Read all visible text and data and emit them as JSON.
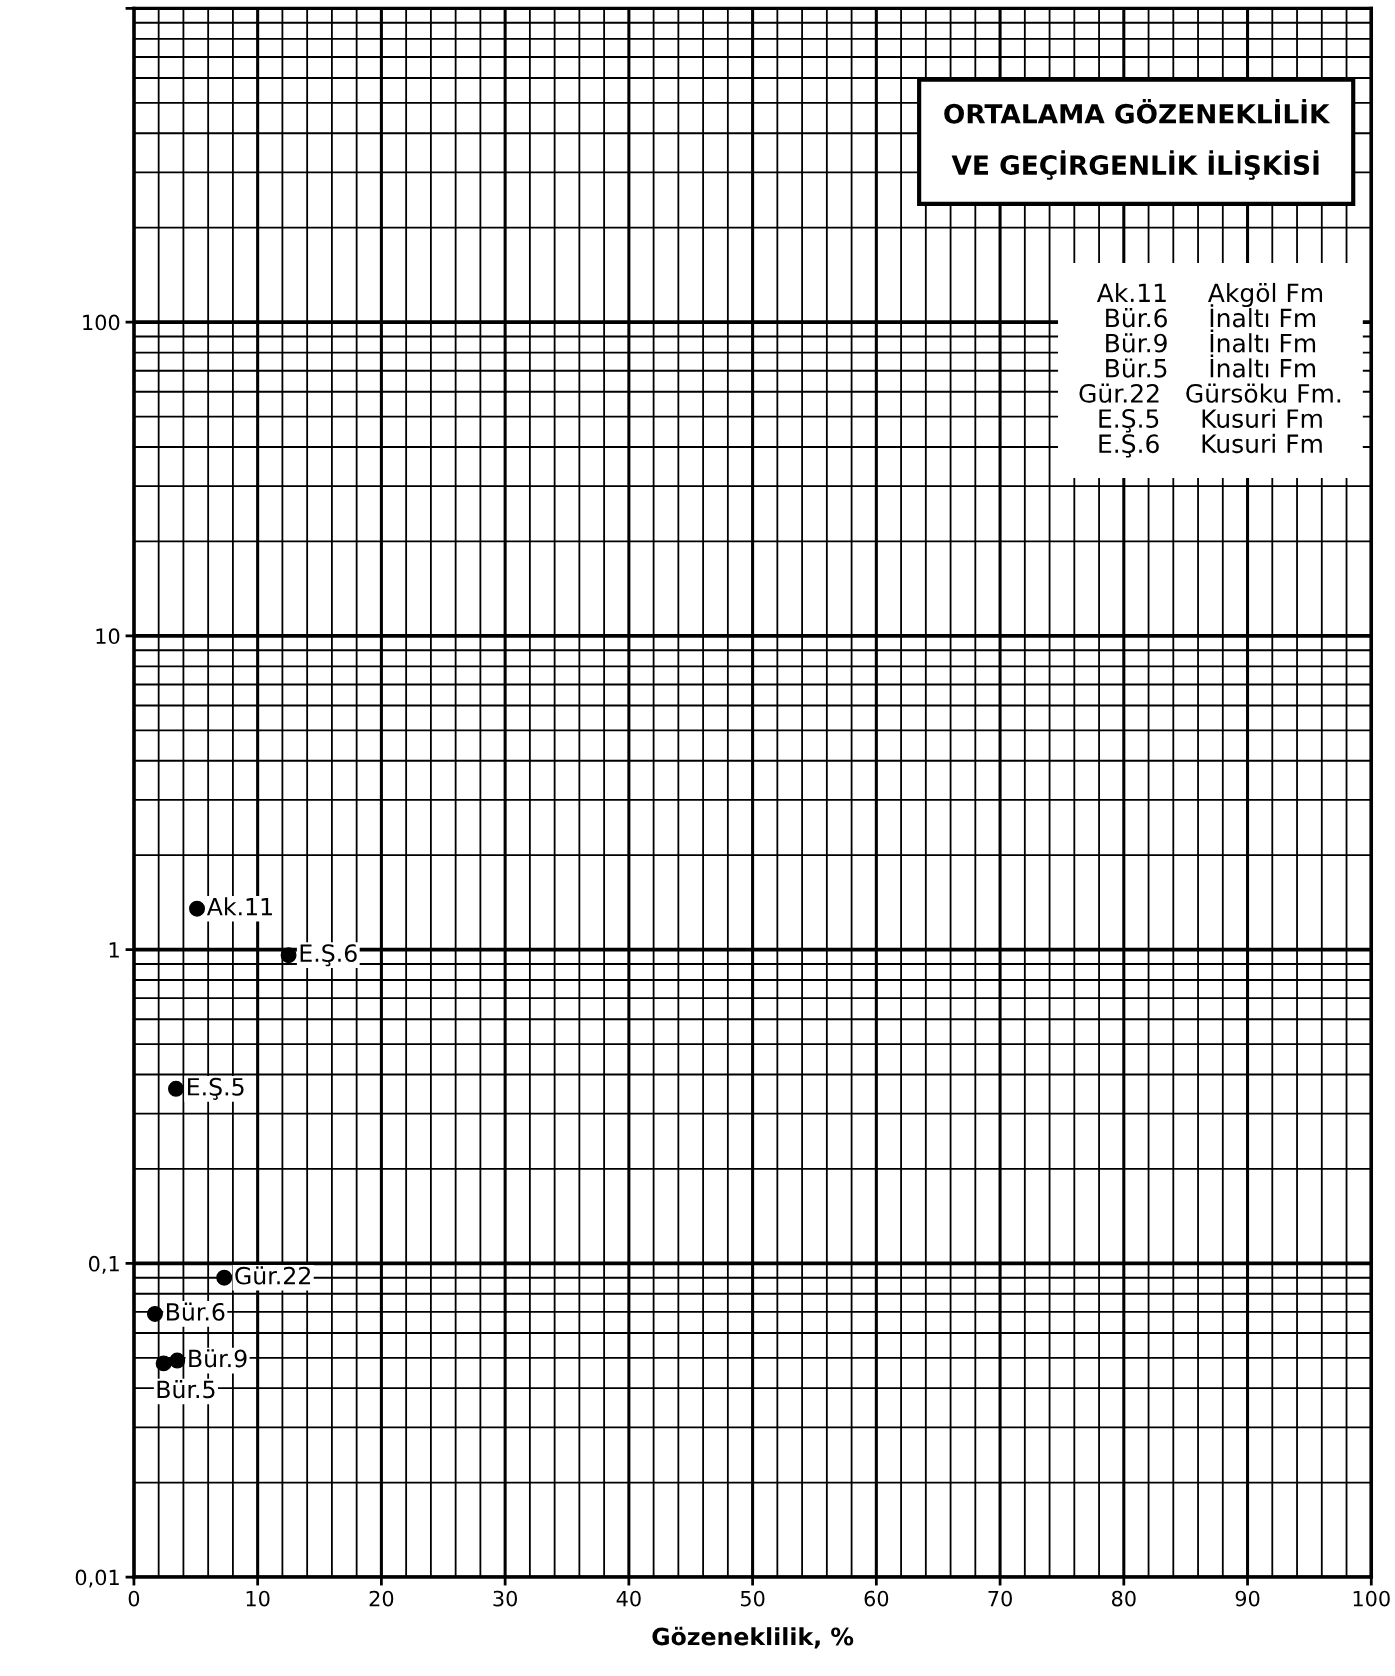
{
  "chart_data": {
    "type": "scatter",
    "title": "ORTALAMA GÖZENEKLİLİK\nVE GEÇİRGENLİK İLİŞKİSİ",
    "xlabel": "Gözeneklilik, %",
    "x": [
      5.1,
      12.5,
      3.4,
      7.3,
      1.7,
      3.5,
      2.4
    ],
    "series": [
      {
        "color": "#000000",
        "values": [
          1.35,
          0.96,
          0.36,
          0.09,
          0.069,
          0.049,
          0.048
        ]
      }
    ],
    "marker": "circle",
    "log": "y",
    "grid": true,
    "xlim": [
      0,
      100
    ],
    "xticks": [
      0,
      10,
      20,
      30,
      40,
      50,
      60,
      70,
      80,
      90,
      100
    ],
    "ylim": [
      0.01,
      1000
    ],
    "yticks": [
      {
        "value": 0.01,
        "label": "0,01"
      },
      {
        "value": 0.1,
        "label": "0,1"
      },
      1,
      10,
      100,
      {
        "value": 1000,
        "label": null
      }
    ],
    "annotations": [
      {
        "text": "Ak.11",
        "x": 5.1,
        "y": 1.35
      },
      {
        "text": "E.Ş.6",
        "x": 12.5,
        "y": 0.96
      },
      {
        "text": "E.Ş.5",
        "x": 3.4,
        "y": 0.36
      },
      {
        "text": "Gür.22",
        "x": 7.3,
        "y": 0.09
      },
      {
        "text": "Bür.6",
        "x": 1.7,
        "y": 0.069
      },
      {
        "text": "Bür.9",
        "x": 3.5,
        "y": 0.049
      },
      {
        "text": "Bür.5",
        "x": 2.4,
        "y": 0.048
      },
      "Ak.11     Akgöl Fm",
      "Bür.6     İnaltı Fm",
      "Bür.9     İnaltı Fm",
      "Bür.5     İnaltı Fm",
      "Gür.22   Gürsöku Fm.",
      "E.Ş.5     Kusuri Fm",
      "E.Ş.6     Kusuri Fm"
    ]
  }
}
